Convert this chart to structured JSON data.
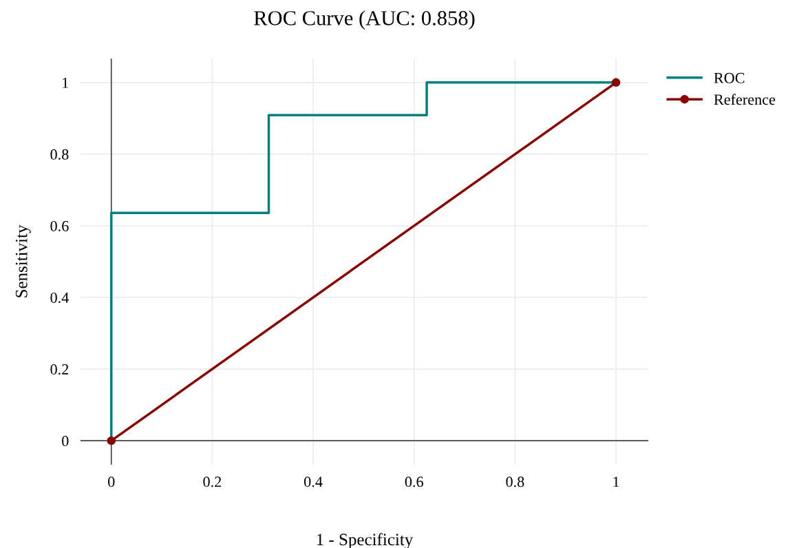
{
  "chart_data": {
    "type": "line",
    "title": "ROC Curve (AUC: 0.858)",
    "xlabel": "1 - Specificity",
    "ylabel": "Sensitivity",
    "series": [
      {
        "name": "ROC",
        "color": "#008080",
        "x": [
          0,
          0,
          0.312,
          0.312,
          0.625,
          0.625,
          1
        ],
        "values": [
          0,
          0.636,
          0.636,
          0.909,
          0.909,
          1,
          1
        ],
        "marker": "none"
      },
      {
        "name": "Reference",
        "color": "#8b0000",
        "x": [
          0,
          1
        ],
        "values": [
          0,
          1
        ],
        "marker": "circle"
      }
    ],
    "xlim": [
      -0.061,
      1.064
    ],
    "ylim": [
      -0.067,
      1.067
    ],
    "xticks": [
      0,
      0.2,
      0.4,
      0.6,
      0.8,
      1
    ],
    "yticks": [
      0,
      0.2,
      0.4,
      0.6,
      0.8,
      1
    ],
    "grid": true,
    "legend": "top right",
    "line_style": "solid"
  }
}
